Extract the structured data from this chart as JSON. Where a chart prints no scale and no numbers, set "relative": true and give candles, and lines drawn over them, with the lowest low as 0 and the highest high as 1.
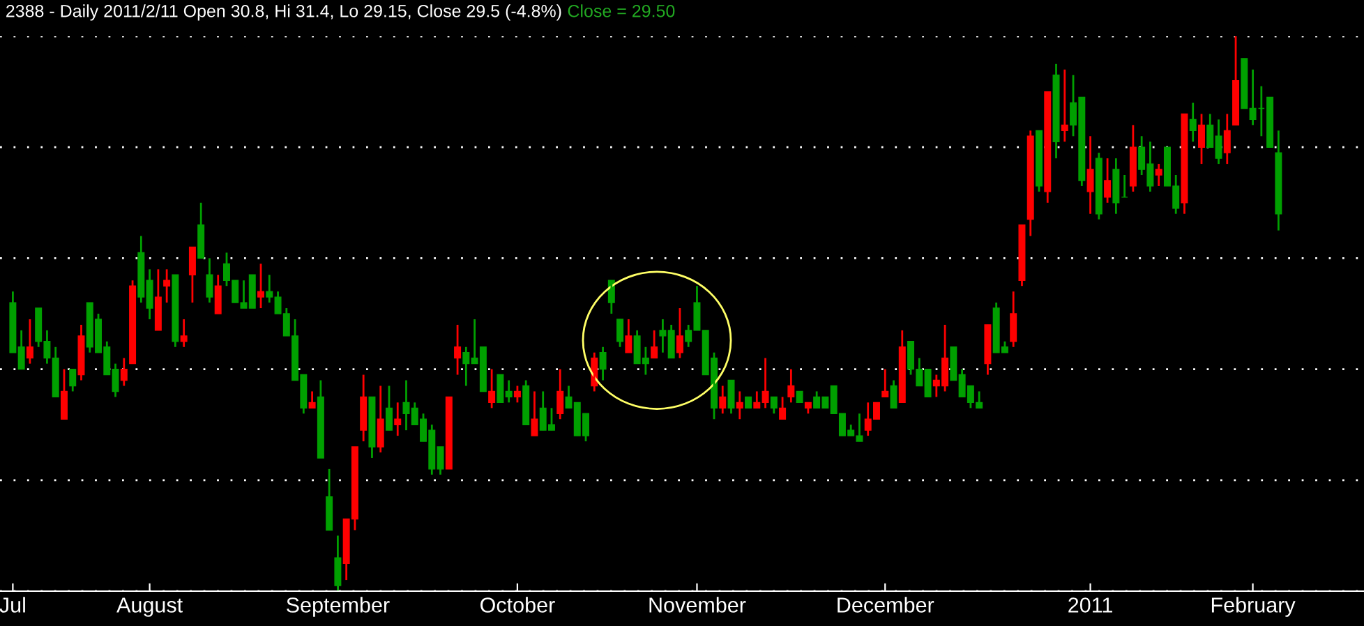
{
  "chart_data": {
    "type": "candlestick",
    "title": "2388 - Daily 2011/2/11 Open 30.8, Hi 31.4, Lo 29.15, Close 29.5 (-4.8%)",
    "annotations": [
      "Close = 29.50"
    ],
    "relative": true,
    "grid": "y",
    "tick_labels": "x",
    "categories": [
      "Jul",
      null,
      null,
      null,
      null,
      null,
      null,
      null,
      null,
      null,
      null,
      null,
      null,
      null,
      null,
      null,
      "August",
      null,
      null,
      null,
      null,
      null,
      null,
      null,
      null,
      null,
      null,
      null,
      null,
      null,
      null,
      null,
      null,
      null,
      null,
      null,
      null,
      null,
      "September",
      null,
      null,
      null,
      null,
      null,
      null,
      null,
      null,
      null,
      null,
      null,
      null,
      null,
      null,
      null,
      null,
      null,
      null,
      null,
      null,
      "October",
      null,
      null,
      null,
      null,
      null,
      null,
      null,
      null,
      null,
      null,
      null,
      null,
      null,
      null,
      null,
      null,
      null,
      null,
      null,
      null,
      "November",
      null,
      null,
      null,
      null,
      null,
      null,
      null,
      null,
      null,
      null,
      null,
      null,
      null,
      null,
      null,
      null,
      null,
      null,
      null,
      null,
      null,
      "December",
      null,
      null,
      null,
      null,
      null,
      null,
      null,
      null,
      null,
      null,
      null,
      null,
      null,
      null,
      null,
      null,
      null,
      null,
      null,
      null,
      null,
      null,
      null,
      "2011",
      null,
      null,
      null,
      null,
      null,
      null,
      null,
      null,
      null,
      null,
      null,
      null,
      null,
      null,
      null,
      null,
      null,
      null,
      "February",
      null,
      null,
      null
    ],
    "ohlc": [
      [
        0.52,
        0.54,
        0.43,
        0.43
      ],
      [
        0.44,
        0.47,
        0.4,
        0.4
      ],
      [
        0.42,
        0.49,
        0.41,
        0.44
      ],
      [
        0.51,
        0.51,
        0.44,
        0.45
      ],
      [
        0.45,
        0.47,
        0.41,
        0.42
      ],
      [
        0.42,
        0.44,
        0.35,
        0.35
      ],
      [
        0.31,
        0.4,
        0.31,
        0.36
      ],
      [
        0.4,
        0.4,
        0.36,
        0.37
      ],
      [
        0.39,
        0.48,
        0.38,
        0.46
      ],
      [
        0.52,
        0.52,
        0.43,
        0.44
      ],
      [
        0.49,
        0.5,
        0.43,
        0.43
      ],
      [
        0.44,
        0.45,
        0.39,
        0.39
      ],
      [
        0.4,
        0.41,
        0.35,
        0.36
      ],
      [
        0.38,
        0.42,
        0.37,
        0.4
      ],
      [
        0.41,
        0.56,
        0.41,
        0.55
      ],
      [
        0.61,
        0.64,
        0.52,
        0.53
      ],
      [
        0.56,
        0.58,
        0.49,
        0.51
      ],
      [
        0.47,
        0.58,
        0.47,
        0.53
      ],
      [
        0.55,
        0.58,
        0.52,
        0.56
      ],
      [
        0.57,
        0.57,
        0.44,
        0.45
      ],
      [
        0.45,
        0.49,
        0.44,
        0.46
      ],
      [
        0.57,
        0.62,
        0.52,
        0.62
      ],
      [
        0.66,
        0.7,
        0.6,
        0.6
      ],
      [
        0.57,
        0.6,
        0.52,
        0.53
      ],
      [
        0.5,
        0.57,
        0.5,
        0.55
      ],
      [
        0.59,
        0.61,
        0.55,
        0.56
      ],
      [
        0.56,
        0.56,
        0.52,
        0.52
      ],
      [
        0.52,
        0.56,
        0.51,
        0.51
      ],
      [
        0.57,
        0.57,
        0.51,
        0.51
      ],
      [
        0.53,
        0.59,
        0.51,
        0.54
      ],
      [
        0.54,
        0.57,
        0.52,
        0.53
      ],
      [
        0.53,
        0.54,
        0.5,
        0.5
      ],
      [
        0.5,
        0.51,
        0.46,
        0.46
      ],
      [
        0.46,
        0.49,
        0.38,
        0.38
      ],
      [
        0.39,
        0.39,
        0.32,
        0.33
      ],
      [
        0.33,
        0.36,
        0.33,
        0.34
      ],
      [
        0.35,
        0.38,
        0.24,
        0.24
      ],
      [
        0.17,
        0.22,
        0.11,
        0.11
      ],
      [
        0.06,
        0.1,
        0.0,
        0.01
      ],
      [
        0.05,
        0.13,
        0.02,
        0.13
      ],
      [
        0.13,
        0.26,
        0.11,
        0.26
      ],
      [
        0.29,
        0.39,
        0.27,
        0.35
      ],
      [
        0.35,
        0.35,
        0.24,
        0.26
      ],
      [
        0.26,
        0.37,
        0.25,
        0.31
      ],
      [
        0.33,
        0.37,
        0.29,
        0.29
      ],
      [
        0.3,
        0.34,
        0.28,
        0.31
      ],
      [
        0.34,
        0.38,
        0.29,
        0.32
      ],
      [
        0.33,
        0.34,
        0.3,
        0.3
      ],
      [
        0.31,
        0.32,
        0.27,
        0.27
      ],
      [
        0.29,
        0.3,
        0.21,
        0.22
      ],
      [
        0.26,
        0.26,
        0.21,
        0.22
      ],
      [
        0.22,
        0.35,
        0.22,
        0.35
      ],
      [
        0.42,
        0.48,
        0.39,
        0.44
      ],
      [
        0.43,
        0.44,
        0.37,
        0.41
      ],
      [
        0.42,
        0.49,
        0.41,
        0.41
      ],
      [
        0.44,
        0.44,
        0.36,
        0.36
      ],
      [
        0.34,
        0.4,
        0.33,
        0.36
      ],
      [
        0.39,
        0.39,
        0.34,
        0.34
      ],
      [
        0.36,
        0.38,
        0.34,
        0.35
      ],
      [
        0.35,
        0.37,
        0.34,
        0.36
      ],
      [
        0.37,
        0.38,
        0.3,
        0.3
      ],
      [
        0.28,
        0.36,
        0.28,
        0.31
      ],
      [
        0.33,
        0.36,
        0.29,
        0.29
      ],
      [
        0.3,
        0.33,
        0.29,
        0.29
      ],
      [
        0.32,
        0.4,
        0.31,
        0.36
      ],
      [
        0.35,
        0.37,
        0.33,
        0.33
      ],
      [
        0.34,
        0.34,
        0.28,
        0.28
      ],
      [
        0.32,
        0.32,
        0.27,
        0.28
      ],
      [
        0.37,
        0.43,
        0.36,
        0.42
      ],
      [
        0.43,
        0.44,
        0.38,
        0.4
      ],
      [
        0.56,
        0.56,
        0.5,
        0.52
      ],
      [
        0.49,
        0.49,
        0.44,
        0.45
      ],
      [
        0.43,
        0.49,
        0.43,
        0.46
      ],
      [
        0.46,
        0.47,
        0.41,
        0.41
      ],
      [
        0.42,
        0.44,
        0.39,
        0.41
      ],
      [
        0.42,
        0.47,
        0.42,
        0.44
      ],
      [
        0.47,
        0.49,
        0.43,
        0.46
      ],
      [
        0.47,
        0.48,
        0.42,
        0.42
      ],
      [
        0.43,
        0.51,
        0.42,
        0.46
      ],
      [
        0.47,
        0.48,
        0.44,
        0.45
      ],
      [
        0.52,
        0.55,
        0.47,
        0.47
      ],
      [
        0.47,
        0.47,
        0.39,
        0.39
      ],
      [
        0.42,
        0.43,
        0.31,
        0.33
      ],
      [
        0.33,
        0.37,
        0.32,
        0.35
      ],
      [
        0.38,
        0.38,
        0.32,
        0.33
      ],
      [
        0.33,
        0.36,
        0.31,
        0.34
      ],
      [
        0.35,
        0.35,
        0.33,
        0.33
      ],
      [
        0.33,
        0.36,
        0.33,
        0.34
      ],
      [
        0.34,
        0.42,
        0.33,
        0.36
      ],
      [
        0.35,
        0.35,
        0.32,
        0.33
      ],
      [
        0.31,
        0.35,
        0.31,
        0.33
      ],
      [
        0.35,
        0.4,
        0.34,
        0.37
      ],
      [
        0.36,
        0.36,
        0.34,
        0.34
      ],
      [
        0.33,
        0.34,
        0.32,
        0.34
      ],
      [
        0.35,
        0.36,
        0.33,
        0.33
      ],
      [
        0.35,
        0.35,
        0.33,
        0.33
      ],
      [
        0.37,
        0.37,
        0.32,
        0.32
      ],
      [
        0.32,
        0.32,
        0.28,
        0.28
      ],
      [
        0.29,
        0.3,
        0.28,
        0.28
      ],
      [
        0.28,
        0.32,
        0.27,
        0.27
      ],
      [
        0.29,
        0.34,
        0.28,
        0.31
      ],
      [
        0.31,
        0.34,
        0.31,
        0.34
      ],
      [
        0.35,
        0.4,
        0.35,
        0.36
      ],
      [
        0.37,
        0.38,
        0.33,
        0.33
      ],
      [
        0.34,
        0.47,
        0.34,
        0.44
      ],
      [
        0.45,
        0.45,
        0.39,
        0.4
      ],
      [
        0.4,
        0.42,
        0.37,
        0.37
      ],
      [
        0.4,
        0.4,
        0.35,
        0.35
      ],
      [
        0.37,
        0.39,
        0.35,
        0.38
      ],
      [
        0.37,
        0.48,
        0.36,
        0.42
      ],
      [
        0.44,
        0.44,
        0.38,
        0.38
      ],
      [
        0.39,
        0.4,
        0.35,
        0.35
      ],
      [
        0.37,
        0.37,
        0.33,
        0.34
      ],
      [
        0.34,
        0.36,
        0.33,
        0.33
      ],
      [
        0.41,
        0.48,
        0.39,
        0.48
      ],
      [
        0.51,
        0.52,
        0.43,
        0.43
      ],
      [
        0.44,
        0.45,
        0.43,
        0.43
      ],
      [
        0.45,
        0.54,
        0.44,
        0.5
      ],
      [
        0.56,
        0.66,
        0.55,
        0.66
      ],
      [
        0.67,
        0.83,
        0.64,
        0.82
      ],
      [
        0.83,
        0.83,
        0.72,
        0.73
      ],
      [
        0.72,
        0.9,
        0.7,
        0.9
      ],
      [
        0.93,
        0.95,
        0.78,
        0.81
      ],
      [
        0.83,
        0.94,
        0.81,
        0.84
      ],
      [
        0.88,
        0.93,
        0.82,
        0.84
      ],
      [
        0.89,
        0.89,
        0.73,
        0.74
      ],
      [
        0.72,
        0.82,
        0.68,
        0.76
      ],
      [
        0.78,
        0.79,
        0.67,
        0.68
      ],
      [
        0.71,
        0.78,
        0.7,
        0.74
      ],
      [
        0.76,
        0.78,
        0.68,
        0.7
      ],
      [
        0.71,
        0.75,
        0.71,
        0.71
      ],
      [
        0.73,
        0.84,
        0.72,
        0.8
      ],
      [
        0.8,
        0.82,
        0.75,
        0.76
      ],
      [
        0.77,
        0.81,
        0.72,
        0.73
      ],
      [
        0.75,
        0.77,
        0.73,
        0.76
      ],
      [
        0.8,
        0.8,
        0.73,
        0.73
      ],
      [
        0.73,
        0.75,
        0.68,
        0.69
      ],
      [
        0.7,
        0.86,
        0.68,
        0.86
      ],
      [
        0.85,
        0.88,
        0.81,
        0.83
      ],
      [
        0.8,
        0.86,
        0.77,
        0.84
      ],
      [
        0.84,
        0.86,
        0.8,
        0.8
      ],
      [
        0.82,
        0.85,
        0.77,
        0.78
      ],
      [
        0.79,
        0.86,
        0.77,
        0.83
      ],
      [
        0.84,
        1.0,
        0.84,
        0.92
      ],
      [
        0.96,
        0.96,
        0.87,
        0.87
      ],
      [
        0.87,
        0.94,
        0.84,
        0.85
      ],
      [
        0.87,
        0.91,
        0.82,
        0.87
      ],
      [
        0.89,
        0.89,
        0.8,
        0.8
      ],
      [
        0.79,
        0.83,
        0.65,
        0.68
      ]
    ]
  }
}
